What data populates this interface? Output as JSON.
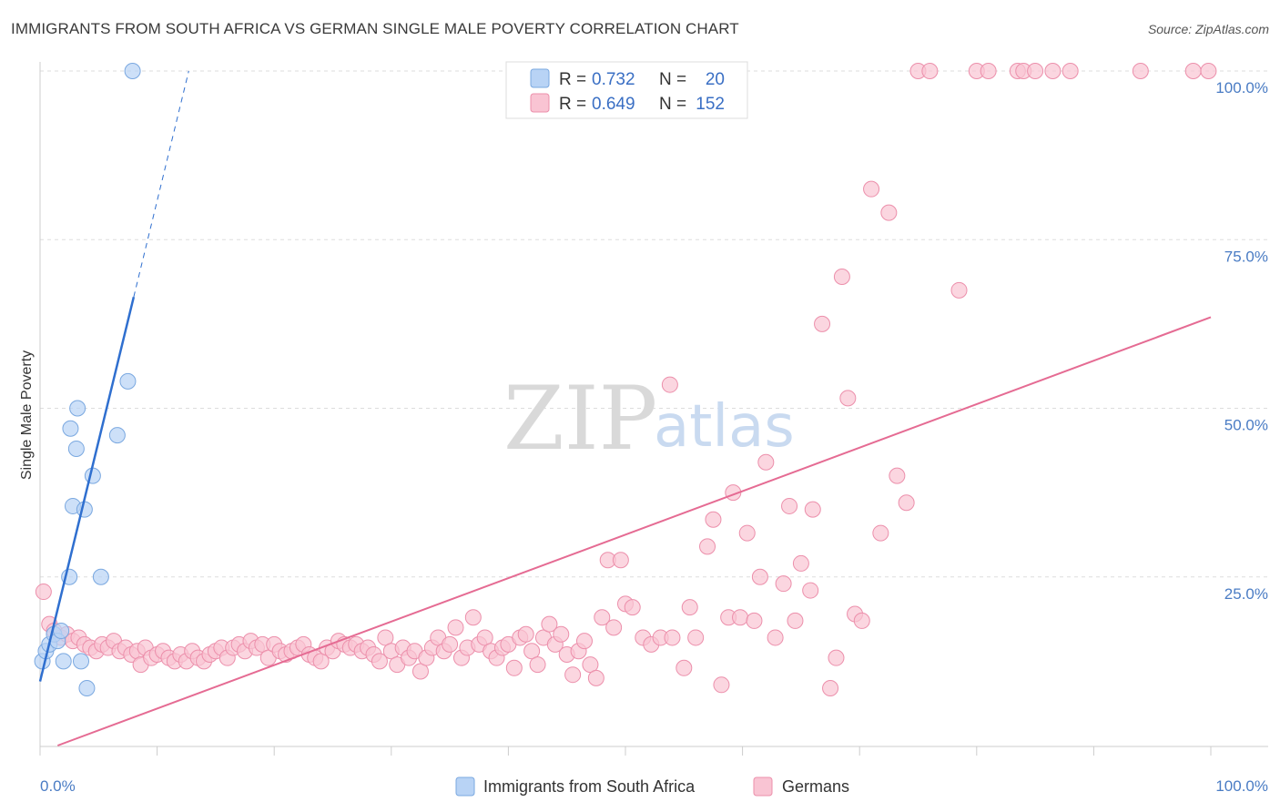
{
  "title": "IMMIGRANTS FROM SOUTH AFRICA VS GERMAN SINGLE MALE POVERTY CORRELATION CHART",
  "source": "Source: ZipAtlas.com",
  "watermark": {
    "zip": "ZIP",
    "atlas": "atlas"
  },
  "colors": {
    "blue_fill": "#b8d3f5",
    "blue_stroke": "#7aa8e0",
    "blue_line": "#2f6fcf",
    "pink_fill": "#f9c4d3",
    "pink_stroke": "#ec8fab",
    "pink_line": "#e56b93",
    "grid": "#dddddd",
    "axis_label": "#4a7cc4"
  },
  "legend": {
    "rows": [
      {
        "r_label": "R =",
        "r_value": "0.732",
        "n_label": "N =",
        "n_value": "20"
      },
      {
        "r_label": "R =",
        "r_value": "0.649",
        "n_label": "N =",
        "n_value": "152"
      }
    ]
  },
  "chart_data": {
    "type": "scatter",
    "title": "IMMIGRANTS FROM SOUTH AFRICA VS GERMAN SINGLE MALE POVERTY CORRELATION CHART",
    "xlabel": "",
    "ylabel": "Single Male Poverty",
    "xlim": [
      0,
      100
    ],
    "ylim": [
      0,
      100
    ],
    "x_tick_labels": [
      "0.0%",
      "100.0%"
    ],
    "y_tick_labels": [
      "25.0%",
      "50.0%",
      "75.0%",
      "100.0%"
    ],
    "y_ticks": [
      25,
      50,
      75,
      100
    ],
    "grid": true,
    "legend_placement": "top-center",
    "series": [
      {
        "name": "Immigrants from South Africa",
        "color": "#b8d3f5",
        "points": [
          [
            0.2,
            12.5
          ],
          [
            0.5,
            14
          ],
          [
            0.8,
            15
          ],
          [
            1.2,
            16.5
          ],
          [
            1.5,
            15.5
          ],
          [
            1.8,
            17
          ],
          [
            2.0,
            12.5
          ],
          [
            2.5,
            25
          ],
          [
            2.6,
            47
          ],
          [
            2.8,
            35.5
          ],
          [
            3.1,
            44
          ],
          [
            3.2,
            50
          ],
          [
            3.5,
            12.5
          ],
          [
            3.8,
            35
          ],
          [
            4.0,
            8.5
          ],
          [
            4.5,
            40
          ],
          [
            5.2,
            25
          ],
          [
            6.6,
            46
          ],
          [
            7.5,
            54
          ],
          [
            7.9,
            100
          ]
        ],
        "trend": {
          "x": [
            0,
            8.0
          ],
          "y": [
            9.5,
            66.5
          ],
          "dashed_x": [
            8.0,
            12.7
          ],
          "dashed_y": [
            66.5,
            100
          ]
        }
      },
      {
        "name": "Germans",
        "color": "#f9c4d3",
        "points": [
          [
            0.3,
            22.8
          ],
          [
            0.8,
            18
          ],
          [
            1.2,
            17
          ],
          [
            1.8,
            16
          ],
          [
            2.3,
            16.5
          ],
          [
            2.8,
            15.5
          ],
          [
            3.3,
            16
          ],
          [
            3.8,
            15
          ],
          [
            4.3,
            14.5
          ],
          [
            4.8,
            14
          ],
          [
            5.3,
            15
          ],
          [
            5.8,
            14.5
          ],
          [
            6.3,
            15.5
          ],
          [
            6.8,
            14
          ],
          [
            7.3,
            14.5
          ],
          [
            7.8,
            13.5
          ],
          [
            8.3,
            14
          ],
          [
            8.6,
            12
          ],
          [
            9.0,
            14.5
          ],
          [
            9.5,
            13
          ],
          [
            10.0,
            13.5
          ],
          [
            10.5,
            14
          ],
          [
            11.0,
            13
          ],
          [
            11.5,
            12.5
          ],
          [
            12.0,
            13.5
          ],
          [
            12.5,
            12.5
          ],
          [
            13.0,
            14
          ],
          [
            13.5,
            13
          ],
          [
            14.0,
            12.5
          ],
          [
            14.5,
            13.5
          ],
          [
            15.0,
            14
          ],
          [
            15.5,
            14.5
          ],
          [
            16.0,
            13
          ],
          [
            16.5,
            14.5
          ],
          [
            17.0,
            15
          ],
          [
            17.5,
            14
          ],
          [
            18.0,
            15.5
          ],
          [
            18.5,
            14.5
          ],
          [
            19.0,
            15
          ],
          [
            19.5,
            13
          ],
          [
            20.0,
            15
          ],
          [
            20.5,
            14
          ],
          [
            21.0,
            13.5
          ],
          [
            21.5,
            14
          ],
          [
            22.0,
            14.5
          ],
          [
            22.5,
            15
          ],
          [
            23.0,
            13.5
          ],
          [
            23.5,
            13
          ],
          [
            24.0,
            12.5
          ],
          [
            24.5,
            14.5
          ],
          [
            25.0,
            14
          ],
          [
            25.5,
            15.5
          ],
          [
            26.0,
            15
          ],
          [
            26.5,
            14.5
          ],
          [
            27.0,
            15
          ],
          [
            27.5,
            14
          ],
          [
            28.0,
            14.5
          ],
          [
            28.5,
            13.5
          ],
          [
            29.0,
            12.5
          ],
          [
            29.5,
            16
          ],
          [
            30.0,
            14
          ],
          [
            30.5,
            12
          ],
          [
            31.0,
            14.5
          ],
          [
            31.5,
            13
          ],
          [
            32.0,
            14
          ],
          [
            32.5,
            11
          ],
          [
            33.0,
            13
          ],
          [
            33.5,
            14.5
          ],
          [
            34.0,
            16
          ],
          [
            34.5,
            14
          ],
          [
            35.0,
            15
          ],
          [
            35.5,
            17.5
          ],
          [
            36.0,
            13
          ],
          [
            36.5,
            14.5
          ],
          [
            37.0,
            19
          ],
          [
            37.5,
            15
          ],
          [
            38.0,
            16
          ],
          [
            38.5,
            14
          ],
          [
            39.0,
            13
          ],
          [
            39.5,
            14.5
          ],
          [
            40.0,
            15
          ],
          [
            40.5,
            11.5
          ],
          [
            41.0,
            16
          ],
          [
            41.5,
            16.5
          ],
          [
            42.0,
            14
          ],
          [
            42.5,
            12
          ],
          [
            43.0,
            16
          ],
          [
            43.5,
            18
          ],
          [
            44.0,
            15
          ],
          [
            44.5,
            16.5
          ],
          [
            45.0,
            13.5
          ],
          [
            45.5,
            10.5
          ],
          [
            46.0,
            14
          ],
          [
            46.5,
            15.5
          ],
          [
            47.0,
            12
          ],
          [
            47.5,
            10
          ],
          [
            48.0,
            19
          ],
          [
            48.5,
            27.5
          ],
          [
            49.0,
            17.5
          ],
          [
            49.6,
            27.5
          ],
          [
            50.0,
            21
          ],
          [
            50.6,
            20.5
          ],
          [
            51.5,
            16
          ],
          [
            52.2,
            15
          ],
          [
            53.0,
            16
          ],
          [
            53.8,
            53.5
          ],
          [
            54.0,
            16
          ],
          [
            55.0,
            11.5
          ],
          [
            55.5,
            20.5
          ],
          [
            56.0,
            16
          ],
          [
            57.0,
            29.5
          ],
          [
            57.5,
            33.5
          ],
          [
            58.2,
            9
          ],
          [
            58.8,
            19
          ],
          [
            59.2,
            37.5
          ],
          [
            59.8,
            19
          ],
          [
            60.4,
            31.5
          ],
          [
            61.0,
            18.5
          ],
          [
            61.5,
            25
          ],
          [
            62.0,
            42
          ],
          [
            62.8,
            16
          ],
          [
            63.5,
            24
          ],
          [
            64.0,
            35.5
          ],
          [
            64.5,
            18.5
          ],
          [
            65.0,
            27
          ],
          [
            65.8,
            23
          ],
          [
            66.0,
            35
          ],
          [
            66.8,
            62.5
          ],
          [
            67.5,
            8.5
          ],
          [
            68.0,
            13
          ],
          [
            68.5,
            69.5
          ],
          [
            69.0,
            51.5
          ],
          [
            69.6,
            19.5
          ],
          [
            70.2,
            18.5
          ],
          [
            71.0,
            82.5
          ],
          [
            71.8,
            31.5
          ],
          [
            72.5,
            79
          ],
          [
            73.2,
            40
          ],
          [
            74.0,
            36
          ],
          [
            75.0,
            100
          ],
          [
            76.0,
            100
          ],
          [
            78.5,
            67.5
          ],
          [
            80.0,
            100
          ],
          [
            81.0,
            100
          ],
          [
            83.5,
            100
          ],
          [
            84.0,
            100
          ],
          [
            85.0,
            100
          ],
          [
            86.5,
            100
          ],
          [
            88.0,
            100
          ],
          [
            94.0,
            100
          ],
          [
            98.5,
            100
          ],
          [
            99.8,
            100
          ]
        ],
        "trend": {
          "x": [
            1.5,
            100
          ],
          "y": [
            0,
            63.5
          ]
        }
      }
    ]
  }
}
